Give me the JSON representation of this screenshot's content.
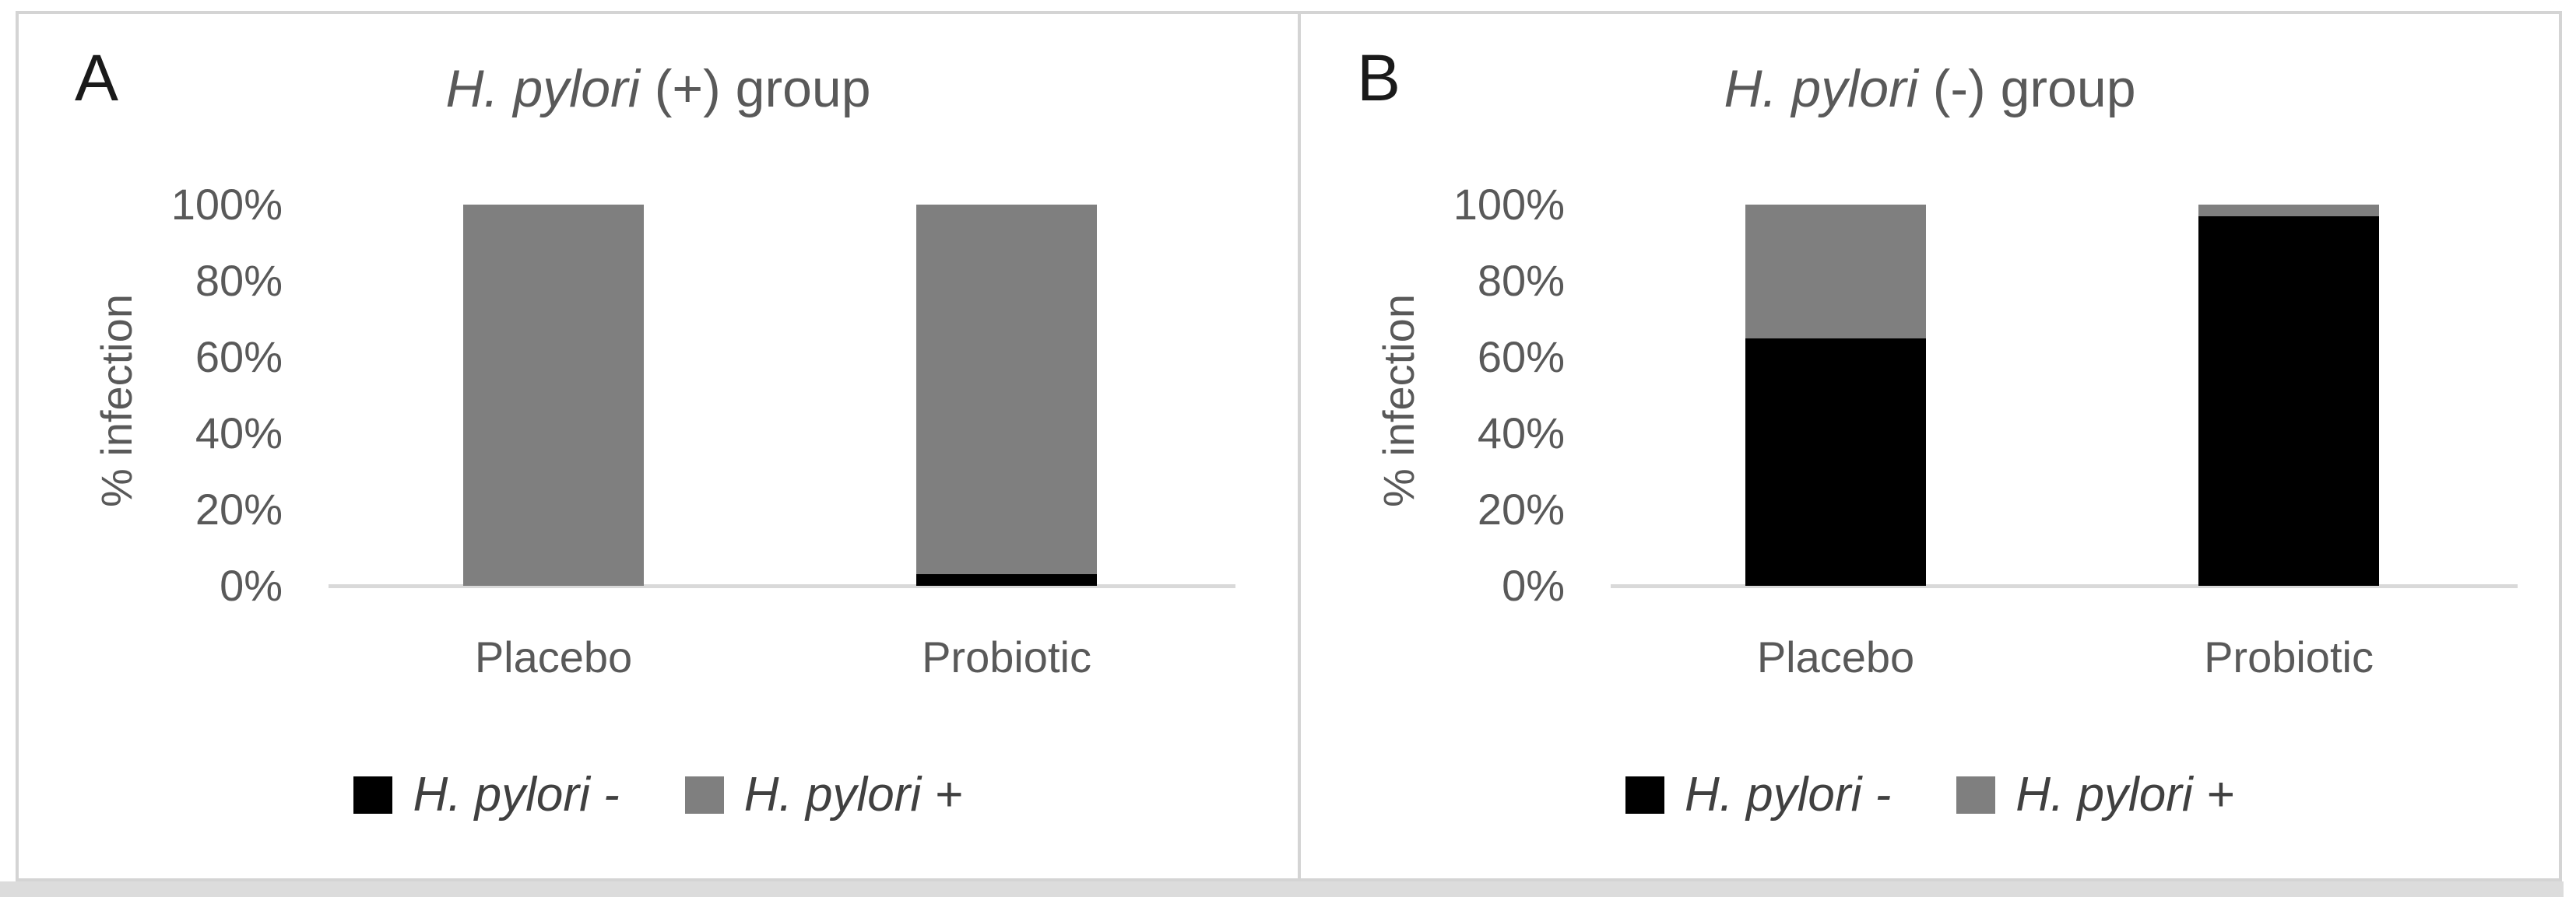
{
  "figure": {
    "bottom_axis_unit": "%",
    "layout": {
      "panels": 2,
      "legend_position": "bottom",
      "grid": false
    }
  },
  "colors": {
    "bar_hpylori_negative": "#000000",
    "bar_hpylori_positive": "#7f7f7f",
    "axis_line": "#d9d9d9",
    "axis_text": "#595959",
    "legend_text": "#404040",
    "panel_letter": "#1a1a1a",
    "frame_border": "#d4d4d4",
    "bottom_band": "#dcdcdc"
  },
  "chart_data": [
    {
      "type": "bar",
      "stacked": true,
      "panel_label": "A",
      "title": "H. pylori (+) group",
      "title_italic": "H. pylori",
      "title_rest": " (+) group",
      "ylabel": "% infection",
      "ylim": [
        0,
        100
      ],
      "yticks": [
        "100%",
        "80%",
        "60%",
        "40%",
        "20%",
        "0%"
      ],
      "categories": [
        "Placebo",
        "Probiotic"
      ],
      "series": [
        {
          "name": "H. pylori -",
          "color": "#000000",
          "values": [
            0,
            3
          ]
        },
        {
          "name": "H. pylori +",
          "color": "#7f7f7f",
          "values": [
            100,
            97
          ]
        }
      ],
      "legend": [
        {
          "label": "H. pylori -",
          "color": "#000000"
        },
        {
          "label": "H. pylori +",
          "color": "#7f7f7f"
        }
      ],
      "legend_position": "bottom",
      "grid": false
    },
    {
      "type": "bar",
      "stacked": true,
      "panel_label": "B",
      "title": "H. pylori (-) group",
      "title_italic": "H. pylori",
      "title_rest": " (-) group",
      "ylabel": "% infection",
      "ylim": [
        0,
        100
      ],
      "yticks": [
        "100%",
        "80%",
        "60%",
        "40%",
        "20%",
        "0%"
      ],
      "categories": [
        "Placebo",
        "Probiotic"
      ],
      "series": [
        {
          "name": "H. pylori -",
          "color": "#000000",
          "values": [
            65,
            97
          ]
        },
        {
          "name": "H. pylori +",
          "color": "#7f7f7f",
          "values": [
            35,
            3
          ]
        }
      ],
      "legend": [
        {
          "label": "H. pylori -",
          "color": "#000000"
        },
        {
          "label": "H. pylori +",
          "color": "#7f7f7f"
        }
      ],
      "legend_position": "bottom",
      "grid": false
    }
  ]
}
